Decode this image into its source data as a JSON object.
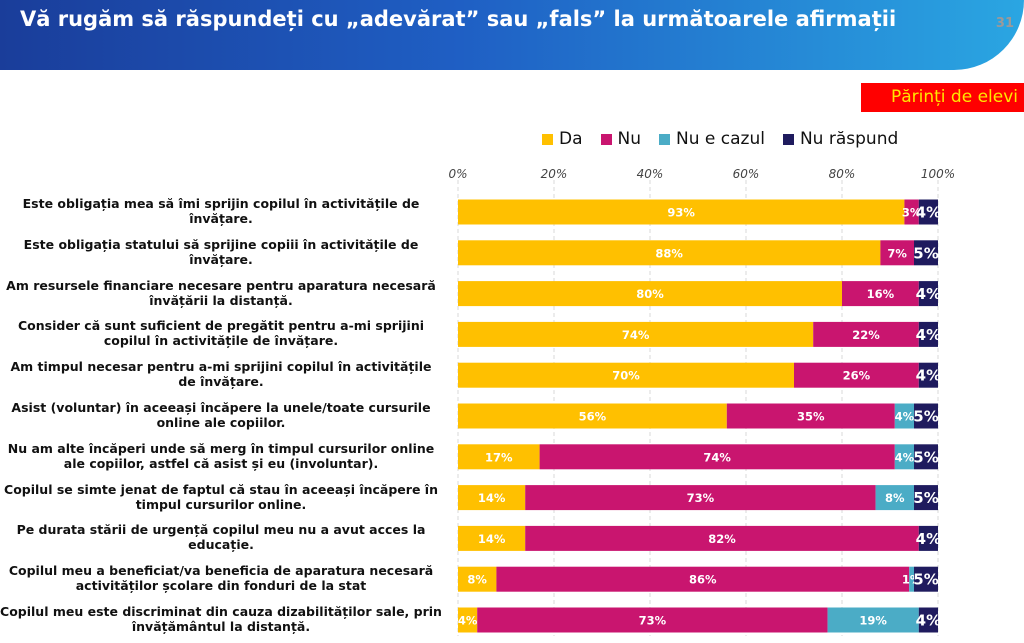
{
  "header": {
    "title": "Vă rugăm să răspundeți cu „adevărat” sau „fals” la următoarele afirmații",
    "page_number": "31"
  },
  "audience_badge": "Părinți de elevi",
  "colors": {
    "header_start": "#1a3d9a",
    "header_end": "#2aa6e2",
    "badge_bg": "#ff0000",
    "badge_text": "#ffe600"
  },
  "chart_data": {
    "type": "bar",
    "orientation": "horizontal",
    "stacked": true,
    "normalized": true,
    "x_ticks": [
      "0%",
      "20%",
      "40%",
      "60%",
      "80%",
      "100%"
    ],
    "xlim": [
      0,
      100
    ],
    "grid": true,
    "legend_position": "top",
    "categories": [
      "Este obligația mea să îmi sprijin copilul în activitățile de învățare.",
      "Este obligația statului să sprijine copiii în activitățile de învățare.",
      "Am resursele financiare necesare pentru aparatura necesară învățării la distanță.",
      "Consider că sunt suficient de pregătit pentru a-mi sprijini copilul în activitățile de învățare.",
      "Am timpul necesar pentru a-mi sprijini copilul în activitățile de învățare.",
      "Asist (voluntar) în aceeași încăpere la unele/toate cursurile online ale copiilor.",
      "Nu am alte încăperi unde să merg în timpul cursurilor online ale copiilor, astfel că asist și eu (involuntar).",
      "Copilul se simte jenat de faptul că stau în aceeași încăpere în timpul cursurilor online.",
      "Pe durata stării de urgență copilul meu nu a avut acces la educație.",
      "Copilul meu a beneficiat/va beneficia de aparatura necesară activităților școlare din fonduri de la stat",
      "Copilul meu este discriminat din cauza dizabilităților sale, prin învățământul la distanță."
    ],
    "series": [
      {
        "name": "Da",
        "color": "#ffc000",
        "values": [
          93,
          88,
          80,
          74,
          70,
          56,
          17,
          14,
          14,
          8,
          4
        ]
      },
      {
        "name": "Nu",
        "color": "#c9156f",
        "values": [
          3,
          7,
          16,
          22,
          26,
          35,
          74,
          73,
          82,
          86,
          73
        ]
      },
      {
        "name": "Nu e cazul",
        "color": "#4bacc6",
        "values": [
          0,
          0,
          0,
          0,
          0,
          4,
          4,
          8,
          0,
          1,
          19
        ]
      },
      {
        "name": "Nu răspund",
        "color": "#1f1b5e",
        "values": [
          4,
          5,
          4,
          4,
          4,
          5,
          5,
          5,
          4,
          5,
          4
        ]
      }
    ],
    "data_labels": [
      [
        "93%",
        "3%",
        "",
        "4%"
      ],
      [
        "88%",
        "7%",
        "",
        "5%"
      ],
      [
        "80%",
        "16%",
        "",
        "4%"
      ],
      [
        "74%",
        "22%",
        "",
        "4%"
      ],
      [
        "70%",
        "26%",
        "",
        "4%"
      ],
      [
        "56%",
        "35%",
        "4%",
        "5%"
      ],
      [
        "17%",
        "74%",
        "4%",
        "5%"
      ],
      [
        "14%",
        "73%",
        "8%",
        "5%"
      ],
      [
        "14%",
        "82%",
        "",
        "4%"
      ],
      [
        "8%",
        "86%",
        "1%",
        "5%"
      ],
      [
        "4%",
        "73%",
        "19%",
        "4%"
      ]
    ]
  }
}
